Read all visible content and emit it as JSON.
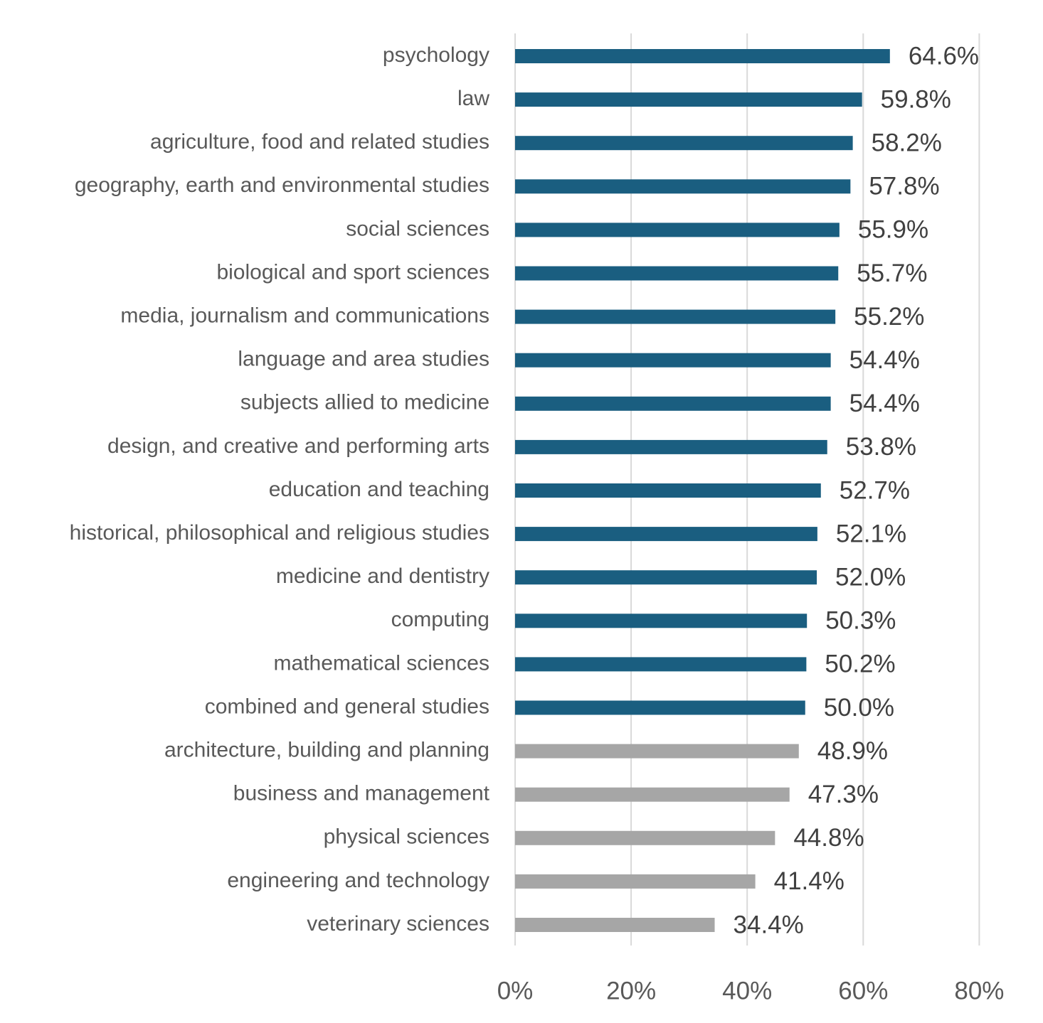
{
  "chart_data": {
    "type": "bar",
    "orientation": "horizontal",
    "title": "",
    "xlabel": "",
    "ylabel": "",
    "xlim": [
      0,
      80
    ],
    "x_ticks": [
      0,
      20,
      40,
      60,
      80
    ],
    "x_tick_labels": [
      "0%",
      "20%",
      "40%",
      "60%",
      "80%"
    ],
    "grid": true,
    "legend": "none",
    "colors": {
      "above_threshold": "#1a5e80",
      "below_threshold": "#a6a6a6"
    },
    "threshold": 50,
    "categories": [
      "psychology",
      "law",
      "agriculture, food and related studies",
      "geography, earth and environmental studies",
      "social sciences",
      "biological and sport sciences",
      "media, journalism and communications",
      "language and area studies",
      "subjects allied to medicine",
      "design, and creative and performing arts",
      "education and teaching",
      "historical, philosophical and religious studies",
      "medicine and dentistry",
      "computing",
      "mathematical sciences",
      "combined and general studies",
      "architecture, building and planning",
      "business and management",
      "physical sciences",
      "engineering and technology",
      "veterinary sciences"
    ],
    "values": [
      64.6,
      59.8,
      58.2,
      57.8,
      55.9,
      55.7,
      55.2,
      54.4,
      54.4,
      53.8,
      52.7,
      52.1,
      52.0,
      50.3,
      50.2,
      50.0,
      48.9,
      47.3,
      44.8,
      41.4,
      34.4
    ],
    "value_labels": [
      "64.6%",
      "59.8%",
      "58.2%",
      "57.8%",
      "55.9%",
      "55.7%",
      "55.2%",
      "54.4%",
      "54.4%",
      "53.8%",
      "52.7%",
      "52.1%",
      "52.0%",
      "50.3%",
      "50.2%",
      "50.0%",
      "48.9%",
      "47.3%",
      "44.8%",
      "41.4%",
      "34.4%"
    ]
  }
}
